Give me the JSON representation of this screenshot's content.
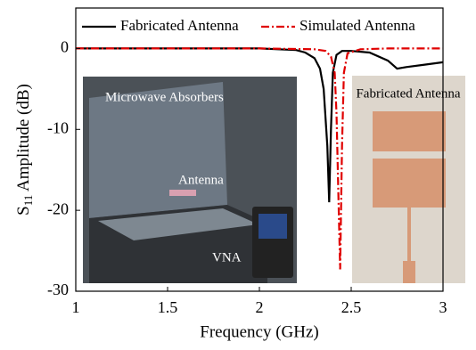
{
  "chart_data": {
    "type": "line",
    "x_label": "Frequency (GHz)",
    "y_label": {
      "symbol": "S",
      "subscript": "11",
      "text": " Amplitude (dB)"
    },
    "xlim": [
      1,
      3
    ],
    "xticks": [
      1,
      1.5,
      2,
      2.5,
      3
    ],
    "ylim": [
      -30,
      5
    ],
    "yticks": [
      -30,
      -20,
      -10,
      0
    ],
    "legend": "top",
    "series": [
      {
        "name": "Fabricated Antenna",
        "color": "#000000",
        "dash": "solid",
        "x": [
          1,
          1.5,
          2,
          2.2,
          2.25,
          2.3,
          2.33,
          2.35,
          2.37,
          2.38,
          2.39,
          2.4,
          2.42,
          2.45,
          2.5,
          2.6,
          2.7,
          2.75,
          2.8,
          2.9,
          3
        ],
        "values": [
          0,
          0,
          0,
          -0.2,
          -0.5,
          -1.2,
          -2.5,
          -5,
          -12,
          -19,
          -10,
          -3,
          -0.8,
          -0.3,
          -0.3,
          -0.5,
          -1.5,
          -2.5,
          -2.3,
          -2,
          -1.7
        ]
      },
      {
        "name": "Simulated Antenna",
        "color": "#e00000",
        "dash": "dashed",
        "x": [
          1,
          1.5,
          2,
          2.3,
          2.36,
          2.39,
          2.41,
          2.42,
          2.43,
          2.44,
          2.45,
          2.46,
          2.48,
          2.55,
          2.7,
          3
        ],
        "values": [
          0,
          0,
          0,
          -0.1,
          -0.3,
          -1,
          -3,
          -8,
          -18,
          -27.3,
          -12,
          -3,
          -0.6,
          -0.1,
          0,
          0
        ]
      }
    ],
    "annotations": [
      "Microwave Absorbers",
      "Antenna",
      "VNA",
      "Fabricated Antenna"
    ]
  }
}
